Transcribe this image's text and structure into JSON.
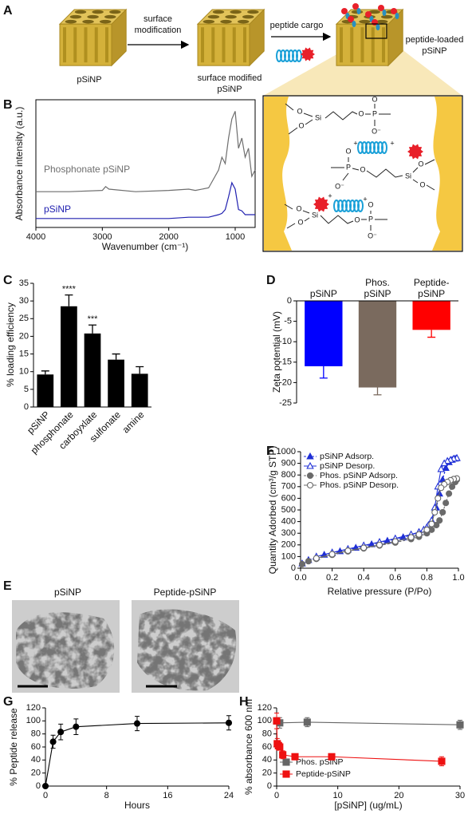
{
  "panel_labels": [
    "A",
    "B",
    "C",
    "D",
    "E",
    "F",
    "G",
    "H"
  ],
  "schematic": {
    "steps": [
      [
        "surface",
        "modification"
      ],
      [
        "peptide cargo"
      ]
    ],
    "particles": [
      [
        "pSiNP"
      ],
      [
        "surface modified",
        "pSiNP"
      ],
      [
        "peptide-loaded",
        "pSiNP"
      ]
    ],
    "inset_labels": [
      "O",
      "O",
      "Si",
      "O",
      "P",
      "O",
      "O⁻",
      "+",
      "+",
      "P",
      "O",
      "O⁻",
      "O",
      "Si",
      "O",
      "O",
      "+",
      "+",
      "O",
      "O",
      "Si",
      "O",
      "P",
      "O",
      "O⁻"
    ]
  },
  "micrographs": {
    "titles": [
      "pSiNP",
      "Peptide-pSiNP"
    ]
  },
  "chart_data": [
    {
      "type": "line",
      "x_label": "Wavenumber (cm⁻¹)",
      "y_label": "Absorbance intensity (a.u.)",
      "legend": "inline",
      "frame": true,
      "x": [
        4000,
        3500,
        3000,
        2950,
        2900,
        2500,
        2000,
        1700,
        1600,
        1400,
        1250,
        1200,
        1150,
        1100,
        1050,
        1000,
        950,
        900,
        850,
        800,
        750,
        700
      ],
      "xlim": [
        4000,
        700
      ],
      "xticks": [
        4000,
        3000,
        2000,
        1000
      ],
      "ylim": [
        0,
        1
      ],
      "series": [
        {
          "name": "Phosphonate pSiNP",
          "color": "#6e6e6e",
          "values": [
            0.28,
            0.28,
            0.29,
            0.32,
            0.3,
            0.28,
            0.29,
            0.3,
            0.29,
            0.31,
            0.45,
            0.55,
            0.5,
            0.7,
            0.85,
            0.91,
            0.62,
            0.7,
            0.55,
            0.62,
            0.4,
            0.45
          ]
        },
        {
          "name": "pSiNP",
          "color": "#2020b0",
          "values": [
            0.07,
            0.07,
            0.07,
            0.07,
            0.07,
            0.07,
            0.07,
            0.08,
            0.08,
            0.08,
            0.1,
            0.11,
            0.14,
            0.24,
            0.35,
            0.3,
            0.14,
            0.13,
            0.1,
            0.1,
            0.1,
            0.1
          ]
        }
      ]
    },
    {
      "type": "bar",
      "y_label": "% loading efficiency",
      "color": "#000000",
      "categories": [
        "pSiNP",
        "phosphonate",
        "carboyxlate",
        "sulfonate",
        "amine"
      ],
      "values": [
        9.2,
        28.5,
        20.8,
        13.4,
        9.4
      ],
      "errors": [
        1.0,
        3.2,
        2.4,
        1.6,
        2.0
      ],
      "significance": [
        null,
        "****",
        "***",
        null,
        null
      ],
      "ylim": [
        0,
        35
      ],
      "yticks": [
        0,
        5,
        10,
        15,
        20,
        25,
        30,
        35
      ]
    },
    {
      "type": "bar",
      "y_label": "Zeta potential (mV)",
      "categories": [
        [
          "pSiNP"
        ],
        [
          "Phos.",
          "pSiNP"
        ],
        [
          "Peptide-",
          "pSiNP"
        ]
      ],
      "values": [
        -16,
        -21.2,
        -7.1
      ],
      "errors": [
        2.9,
        1.8,
        1.8
      ],
      "colors": [
        "#0000ff",
        "#7a6a5e",
        "#ff0000"
      ],
      "ylim": [
        -25,
        0
      ],
      "yticks": [
        0,
        -5,
        -10,
        -15,
        -20,
        -25
      ]
    },
    {
      "type": "line",
      "x_label": "Relative pressure (P/Po)",
      "y_label": "Quantity Adorbed (cm³/g STP)",
      "legend": "upper left",
      "xlim": [
        0,
        1
      ],
      "xticks": [
        {
          "value": 0,
          "label": "0.0"
        },
        0.2,
        0.4,
        0.6,
        0.8,
        {
          "value": 1,
          "label": "1.0"
        }
      ],
      "ylim": [
        0,
        1000
      ],
      "yticks": [
        0,
        100,
        200,
        300,
        400,
        500,
        600,
        700,
        800,
        900,
        1000
      ],
      "series": [
        {
          "name": "pSiNP Adsorp.",
          "color": "#1f2fd6",
          "marker": "triangle",
          "filled": true,
          "dashed": true,
          "x": [
            0.01,
            0.05,
            0.1,
            0.15,
            0.2,
            0.25,
            0.3,
            0.35,
            0.4,
            0.45,
            0.5,
            0.55,
            0.6,
            0.65,
            0.7,
            0.75,
            0.8,
            0.83,
            0.86,
            0.88,
            0.9,
            0.92,
            0.94,
            0.96,
            0.98,
            0.99
          ],
          "values": [
            40,
            70,
            95,
            115,
            130,
            145,
            160,
            175,
            190,
            205,
            220,
            235,
            250,
            265,
            285,
            310,
            350,
            400,
            520,
            640,
            760,
            860,
            910,
            930,
            940,
            945
          ]
        },
        {
          "name": "pSiNP Desorp.",
          "color": "#1f2fd6",
          "marker": "triangle",
          "filled": false,
          "dashed": false,
          "x": [
            0.99,
            0.97,
            0.95,
            0.93,
            0.91,
            0.89,
            0.87,
            0.85,
            0.83,
            0.81,
            0.8,
            0.78,
            0.75,
            0.7,
            0.6,
            0.5,
            0.4,
            0.3,
            0.2,
            0.1
          ],
          "values": [
            945,
            940,
            930,
            920,
            900,
            850,
            700,
            520,
            410,
            370,
            350,
            330,
            310,
            290,
            255,
            225,
            195,
            165,
            135,
            100
          ]
        },
        {
          "name": "Phos. pSiNP Adsorp.",
          "color": "#6a6a6a",
          "marker": "circle",
          "filled": true,
          "dashed": true,
          "x": [
            0.01,
            0.05,
            0.1,
            0.2,
            0.3,
            0.4,
            0.5,
            0.6,
            0.7,
            0.75,
            0.8,
            0.83,
            0.86,
            0.88,
            0.9,
            0.92,
            0.94,
            0.96,
            0.98,
            0.99
          ],
          "values": [
            35,
            60,
            80,
            115,
            145,
            170,
            195,
            220,
            250,
            270,
            300,
            330,
            370,
            410,
            480,
            560,
            640,
            700,
            740,
            760
          ]
        },
        {
          "name": "Phos. pSiNP Desorp.",
          "color": "#6a6a6a",
          "marker": "circle",
          "filled": false,
          "dashed": false,
          "x": [
            0.99,
            0.97,
            0.95,
            0.93,
            0.91,
            0.89,
            0.87,
            0.85,
            0.83,
            0.8,
            0.75,
            0.7,
            0.6,
            0.5,
            0.4,
            0.3,
            0.2,
            0.1
          ],
          "values": [
            770,
            765,
            755,
            740,
            720,
            690,
            600,
            480,
            380,
            330,
            290,
            265,
            230,
            200,
            175,
            150,
            120,
            85
          ]
        }
      ]
    },
    {
      "type": "line",
      "x_label": "Hours",
      "y_label": "% Peptide release",
      "xlim": [
        0,
        24
      ],
      "xticks": [
        0,
        8,
        16,
        24
      ],
      "ylim": [
        0,
        120
      ],
      "yticks": [
        0,
        20,
        40,
        60,
        80,
        100,
        120
      ],
      "x": [
        0,
        1,
        2,
        4,
        12,
        24
      ],
      "series": [
        {
          "color": "#000000",
          "marker": "circle",
          "filled": true,
          "values": [
            0,
            68,
            83,
            91,
            96,
            97
          ],
          "errors": [
            0,
            10,
            12,
            12,
            11,
            11
          ]
        }
      ]
    },
    {
      "type": "line",
      "x_label": "[pSiNP] (ug/mL)",
      "y_label": "% absorbance 600 nm",
      "legend": "lower left",
      "xlim": [
        0,
        30
      ],
      "xticks": [
        0,
        10,
        20,
        30
      ],
      "ylim": [
        0,
        120
      ],
      "yticks": [
        0,
        20,
        40,
        60,
        80,
        100,
        120
      ],
      "series": [
        {
          "name": "Phos. pSiNP",
          "color": "#666666",
          "marker": "square",
          "filled": true,
          "x": [
            0,
            0.5,
            5,
            30
          ],
          "values": [
            100,
            97,
            98,
            94
          ],
          "errors": [
            5,
            8,
            7,
            7
          ]
        },
        {
          "name": "Peptide-pSiNP",
          "color": "#ee1111",
          "marker": "square",
          "filled": true,
          "x": [
            0,
            0.1,
            0.3,
            0.5,
            1,
            3,
            9,
            27
          ],
          "values": [
            100,
            65,
            62,
            60,
            48,
            45,
            45,
            38
          ],
          "errors": [
            12,
            8,
            6,
            5,
            6,
            4,
            4,
            7
          ]
        }
      ]
    }
  ]
}
